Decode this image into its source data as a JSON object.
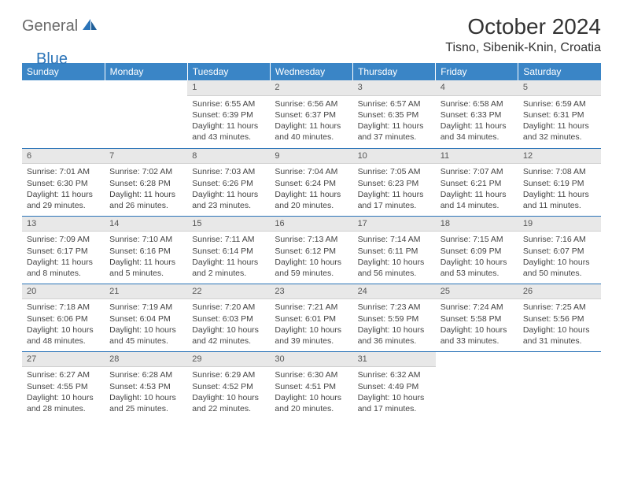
{
  "logo": {
    "part1": "General",
    "part2": "Blue"
  },
  "title": "October 2024",
  "location": "Tisno, Sibenik-Knin, Croatia",
  "colors": {
    "header_bg": "#3a85c6",
    "header_fg": "#ffffff",
    "daynum_bg": "#e8e8e8",
    "rule": "#2b74b8",
    "logo_gray": "#6a6a6a",
    "logo_blue": "#2b74b8"
  },
  "daynames": [
    "Sunday",
    "Monday",
    "Tuesday",
    "Wednesday",
    "Thursday",
    "Friday",
    "Saturday"
  ],
  "weeks": [
    [
      {
        "n": "",
        "sr": "",
        "ss": "",
        "dl": ""
      },
      {
        "n": "",
        "sr": "",
        "ss": "",
        "dl": ""
      },
      {
        "n": "1",
        "sr": "Sunrise: 6:55 AM",
        "ss": "Sunset: 6:39 PM",
        "dl": "Daylight: 11 hours and 43 minutes."
      },
      {
        "n": "2",
        "sr": "Sunrise: 6:56 AM",
        "ss": "Sunset: 6:37 PM",
        "dl": "Daylight: 11 hours and 40 minutes."
      },
      {
        "n": "3",
        "sr": "Sunrise: 6:57 AM",
        "ss": "Sunset: 6:35 PM",
        "dl": "Daylight: 11 hours and 37 minutes."
      },
      {
        "n": "4",
        "sr": "Sunrise: 6:58 AM",
        "ss": "Sunset: 6:33 PM",
        "dl": "Daylight: 11 hours and 34 minutes."
      },
      {
        "n": "5",
        "sr": "Sunrise: 6:59 AM",
        "ss": "Sunset: 6:31 PM",
        "dl": "Daylight: 11 hours and 32 minutes."
      }
    ],
    [
      {
        "n": "6",
        "sr": "Sunrise: 7:01 AM",
        "ss": "Sunset: 6:30 PM",
        "dl": "Daylight: 11 hours and 29 minutes."
      },
      {
        "n": "7",
        "sr": "Sunrise: 7:02 AM",
        "ss": "Sunset: 6:28 PM",
        "dl": "Daylight: 11 hours and 26 minutes."
      },
      {
        "n": "8",
        "sr": "Sunrise: 7:03 AM",
        "ss": "Sunset: 6:26 PM",
        "dl": "Daylight: 11 hours and 23 minutes."
      },
      {
        "n": "9",
        "sr": "Sunrise: 7:04 AM",
        "ss": "Sunset: 6:24 PM",
        "dl": "Daylight: 11 hours and 20 minutes."
      },
      {
        "n": "10",
        "sr": "Sunrise: 7:05 AM",
        "ss": "Sunset: 6:23 PM",
        "dl": "Daylight: 11 hours and 17 minutes."
      },
      {
        "n": "11",
        "sr": "Sunrise: 7:07 AM",
        "ss": "Sunset: 6:21 PM",
        "dl": "Daylight: 11 hours and 14 minutes."
      },
      {
        "n": "12",
        "sr": "Sunrise: 7:08 AM",
        "ss": "Sunset: 6:19 PM",
        "dl": "Daylight: 11 hours and 11 minutes."
      }
    ],
    [
      {
        "n": "13",
        "sr": "Sunrise: 7:09 AM",
        "ss": "Sunset: 6:17 PM",
        "dl": "Daylight: 11 hours and 8 minutes."
      },
      {
        "n": "14",
        "sr": "Sunrise: 7:10 AM",
        "ss": "Sunset: 6:16 PM",
        "dl": "Daylight: 11 hours and 5 minutes."
      },
      {
        "n": "15",
        "sr": "Sunrise: 7:11 AM",
        "ss": "Sunset: 6:14 PM",
        "dl": "Daylight: 11 hours and 2 minutes."
      },
      {
        "n": "16",
        "sr": "Sunrise: 7:13 AM",
        "ss": "Sunset: 6:12 PM",
        "dl": "Daylight: 10 hours and 59 minutes."
      },
      {
        "n": "17",
        "sr": "Sunrise: 7:14 AM",
        "ss": "Sunset: 6:11 PM",
        "dl": "Daylight: 10 hours and 56 minutes."
      },
      {
        "n": "18",
        "sr": "Sunrise: 7:15 AM",
        "ss": "Sunset: 6:09 PM",
        "dl": "Daylight: 10 hours and 53 minutes."
      },
      {
        "n": "19",
        "sr": "Sunrise: 7:16 AM",
        "ss": "Sunset: 6:07 PM",
        "dl": "Daylight: 10 hours and 50 minutes."
      }
    ],
    [
      {
        "n": "20",
        "sr": "Sunrise: 7:18 AM",
        "ss": "Sunset: 6:06 PM",
        "dl": "Daylight: 10 hours and 48 minutes."
      },
      {
        "n": "21",
        "sr": "Sunrise: 7:19 AM",
        "ss": "Sunset: 6:04 PM",
        "dl": "Daylight: 10 hours and 45 minutes."
      },
      {
        "n": "22",
        "sr": "Sunrise: 7:20 AM",
        "ss": "Sunset: 6:03 PM",
        "dl": "Daylight: 10 hours and 42 minutes."
      },
      {
        "n": "23",
        "sr": "Sunrise: 7:21 AM",
        "ss": "Sunset: 6:01 PM",
        "dl": "Daylight: 10 hours and 39 minutes."
      },
      {
        "n": "24",
        "sr": "Sunrise: 7:23 AM",
        "ss": "Sunset: 5:59 PM",
        "dl": "Daylight: 10 hours and 36 minutes."
      },
      {
        "n": "25",
        "sr": "Sunrise: 7:24 AM",
        "ss": "Sunset: 5:58 PM",
        "dl": "Daylight: 10 hours and 33 minutes."
      },
      {
        "n": "26",
        "sr": "Sunrise: 7:25 AM",
        "ss": "Sunset: 5:56 PM",
        "dl": "Daylight: 10 hours and 31 minutes."
      }
    ],
    [
      {
        "n": "27",
        "sr": "Sunrise: 6:27 AM",
        "ss": "Sunset: 4:55 PM",
        "dl": "Daylight: 10 hours and 28 minutes."
      },
      {
        "n": "28",
        "sr": "Sunrise: 6:28 AM",
        "ss": "Sunset: 4:53 PM",
        "dl": "Daylight: 10 hours and 25 minutes."
      },
      {
        "n": "29",
        "sr": "Sunrise: 6:29 AM",
        "ss": "Sunset: 4:52 PM",
        "dl": "Daylight: 10 hours and 22 minutes."
      },
      {
        "n": "30",
        "sr": "Sunrise: 6:30 AM",
        "ss": "Sunset: 4:51 PM",
        "dl": "Daylight: 10 hours and 20 minutes."
      },
      {
        "n": "31",
        "sr": "Sunrise: 6:32 AM",
        "ss": "Sunset: 4:49 PM",
        "dl": "Daylight: 10 hours and 17 minutes."
      },
      {
        "n": "",
        "sr": "",
        "ss": "",
        "dl": ""
      },
      {
        "n": "",
        "sr": "",
        "ss": "",
        "dl": ""
      }
    ]
  ]
}
